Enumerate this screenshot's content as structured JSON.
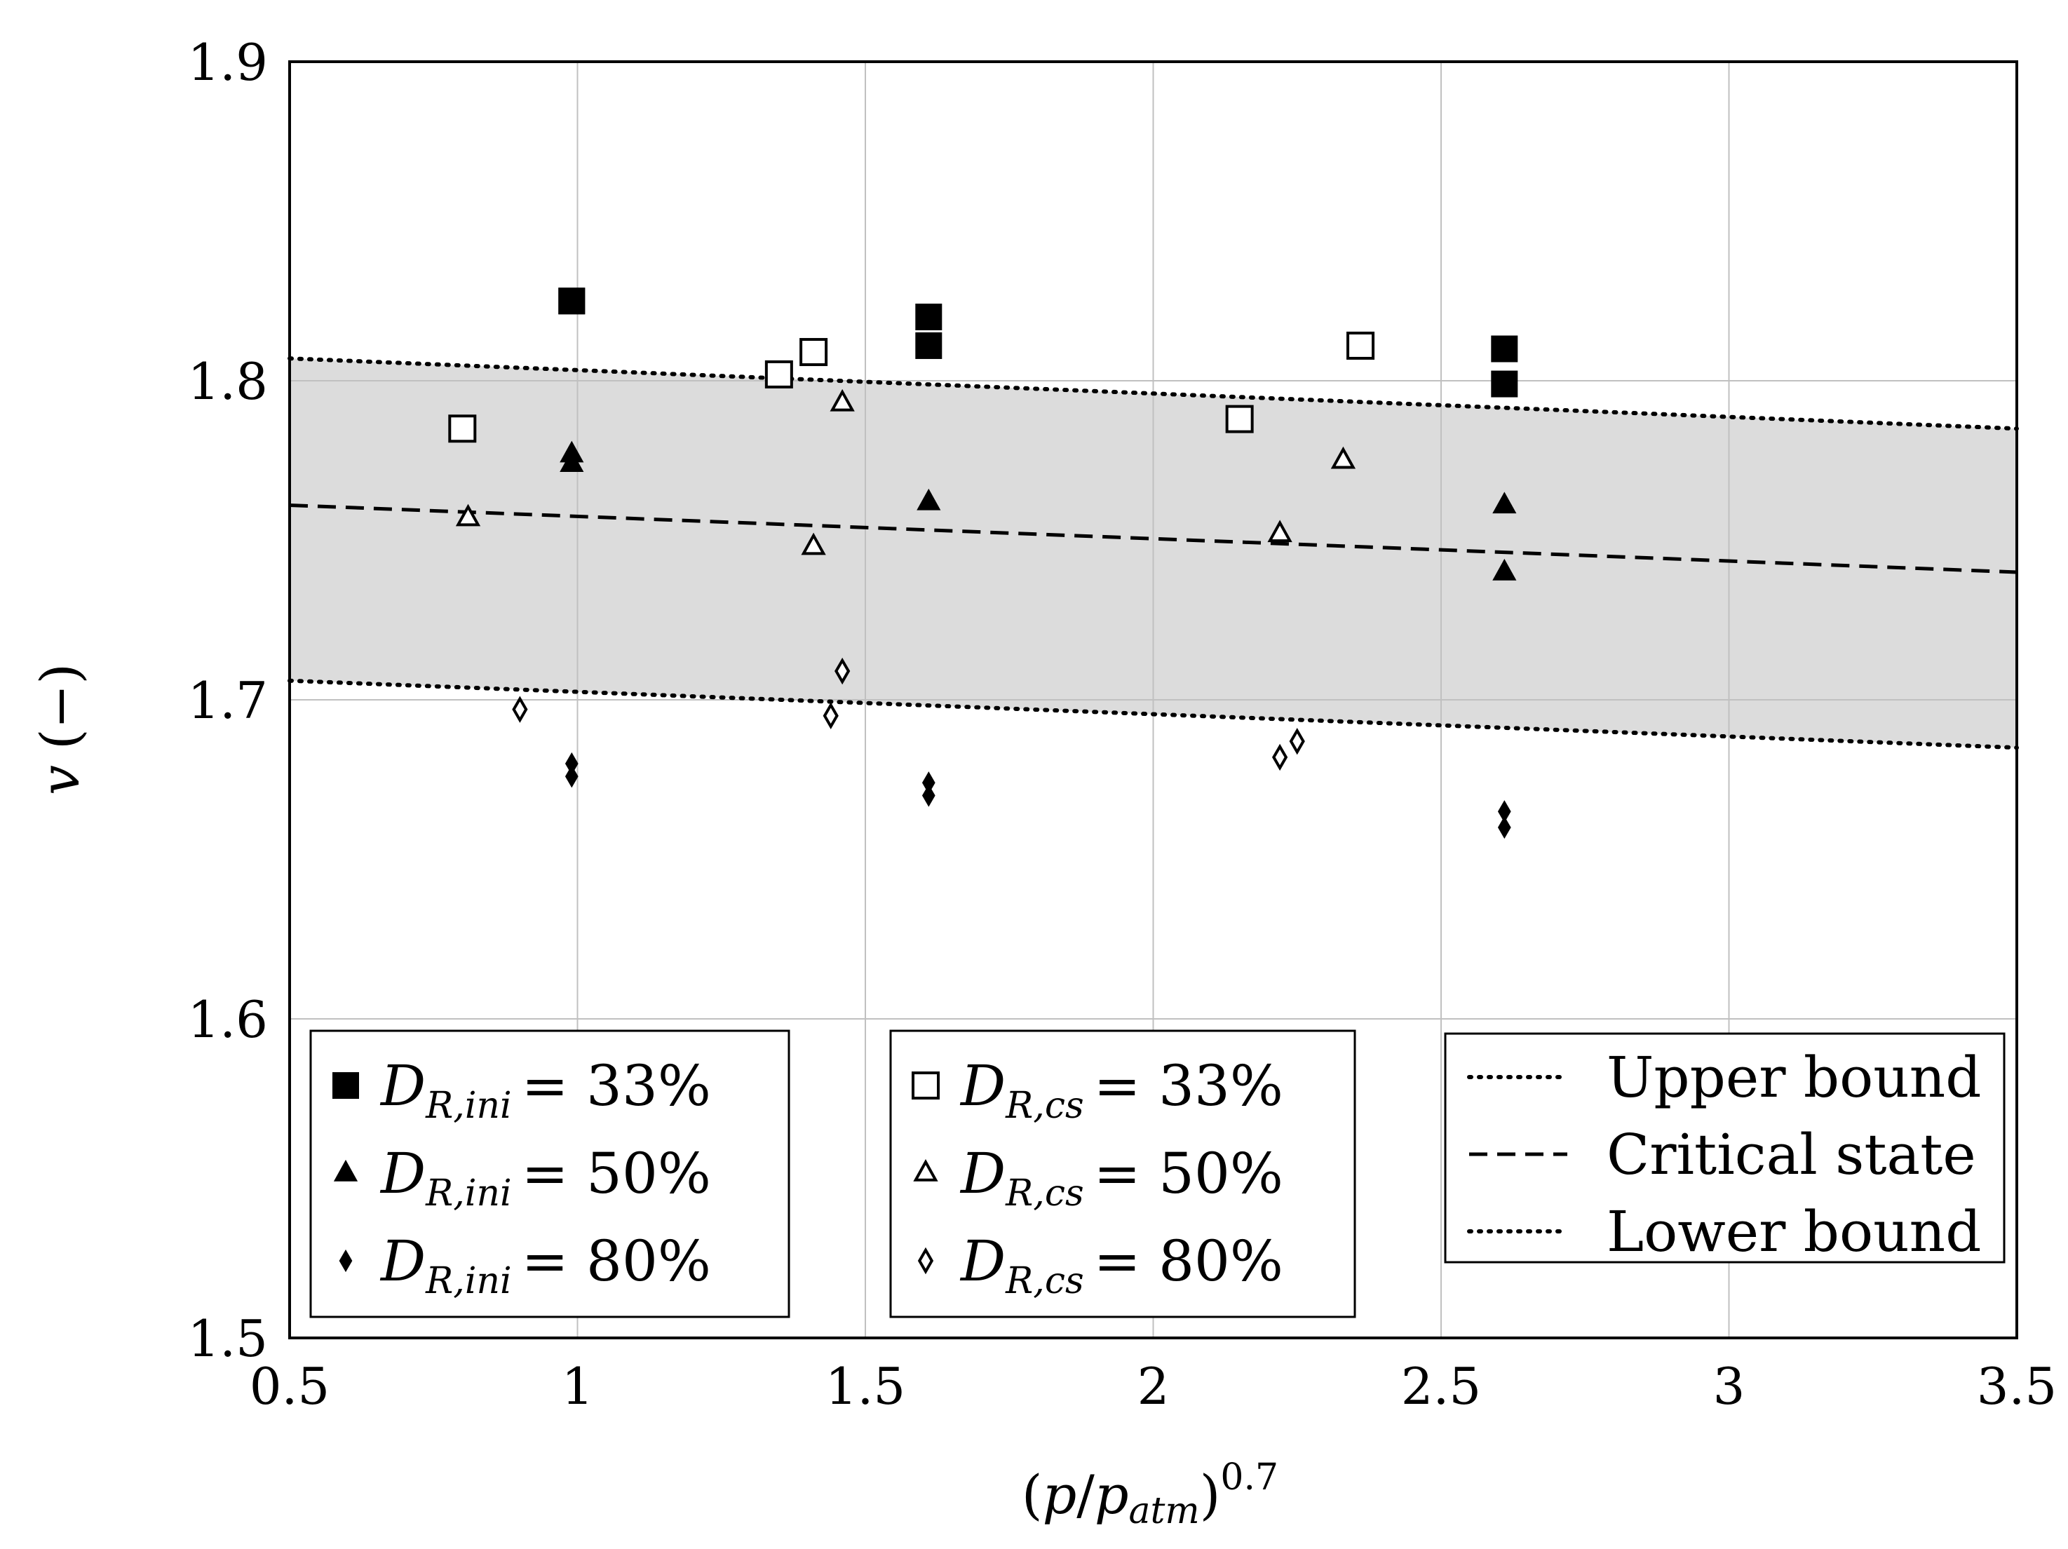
{
  "chart_data": {
    "type": "scatter",
    "title": "",
    "xlabel": "(p/p_atm)^0.7",
    "xlabel_parts": {
      "open": "(",
      "var": "p",
      "slash": "/",
      "var2": "p",
      "sub": "atm",
      "close": ")",
      "sup": "0.7"
    },
    "ylabel": "v (−)",
    "ylabel_parts": {
      "var": "v",
      "unit": "(−)"
    },
    "xlim": [
      0.5,
      3.5
    ],
    "ylim": [
      1.5,
      1.9
    ],
    "xticks": [
      0.5,
      1,
      1.5,
      2,
      2.5,
      3,
      3.5
    ],
    "xtick_labels": [
      "0.5",
      "1",
      "1.5",
      "2",
      "2.5",
      "3",
      "3.5"
    ],
    "yticks": [
      1.5,
      1.6,
      1.7,
      1.8,
      1.9
    ],
    "ytick_labels": [
      "1.5",
      "1.6",
      "1.7",
      "1.8",
      "1.9"
    ],
    "grid": true,
    "band": {
      "x": [
        0.5,
        3.5
      ],
      "upper": [
        1.807,
        1.785
      ],
      "lower": [
        1.706,
        1.685
      ],
      "color": "#dcdcdc"
    },
    "lines": [
      {
        "name": "Upper bound",
        "style": "dotted",
        "x": [
          0.5,
          3.5
        ],
        "y": [
          1.807,
          1.785
        ]
      },
      {
        "name": "Critical state",
        "style": "dashed",
        "x": [
          0.5,
          3.5
        ],
        "y": [
          1.761,
          1.74
        ]
      },
      {
        "name": "Lower bound",
        "style": "dotted",
        "x": [
          0.5,
          3.5
        ],
        "y": [
          1.706,
          1.685
        ]
      }
    ],
    "series": [
      {
        "name": "D_R,ini = 33%",
        "sub": "R,ini",
        "value": "= 33%",
        "marker": "square",
        "filled": true,
        "x": [
          0.99,
          0.99,
          1.61,
          1.61,
          2.61,
          2.61
        ],
        "y": [
          1.825,
          1.825,
          1.82,
          1.811,
          1.81,
          1.799
        ]
      },
      {
        "name": "D_R,ini = 50%",
        "sub": "R,ini",
        "value": "= 50%",
        "marker": "triangle",
        "filled": true,
        "x": [
          0.99,
          0.99,
          1.61,
          2.61,
          2.61
        ],
        "y": [
          1.777,
          1.774,
          1.762,
          1.761,
          1.74
        ]
      },
      {
        "name": "D_R,ini = 80%",
        "sub": "R,ini",
        "value": "= 80%",
        "marker": "diamond",
        "filled": true,
        "x": [
          0.99,
          0.99,
          1.61,
          1.61,
          2.61,
          2.61
        ],
        "y": [
          1.68,
          1.676,
          1.674,
          1.67,
          1.665,
          1.66
        ]
      },
      {
        "name": "D_R,cs = 33%",
        "sub": "R,cs",
        "value": "= 33%",
        "marker": "square",
        "filled": false,
        "x": [
          0.8,
          1.35,
          1.41,
          2.15,
          2.36
        ],
        "y": [
          1.785,
          1.802,
          1.809,
          1.788,
          1.811
        ]
      },
      {
        "name": "D_R,cs = 50%",
        "sub": "R,cs",
        "value": "= 50%",
        "marker": "triangle",
        "filled": false,
        "x": [
          0.81,
          1.41,
          1.46,
          2.22,
          2.33
        ],
        "y": [
          1.757,
          1.748,
          1.793,
          1.752,
          1.775
        ]
      },
      {
        "name": "D_R,cs = 80%",
        "sub": "R,cs",
        "value": "= 80%",
        "marker": "diamond",
        "filled": false,
        "x": [
          0.9,
          1.44,
          1.46,
          2.22,
          2.25
        ],
        "y": [
          1.697,
          1.695,
          1.709,
          1.682,
          1.687
        ]
      }
    ],
    "legends": [
      {
        "location": "bottom-left",
        "entries": [
          0,
          1,
          2
        ]
      },
      {
        "location": "bottom-center",
        "entries": [
          3,
          4,
          5
        ]
      },
      {
        "location": "bottom-right",
        "lines": [
          0,
          1,
          2
        ]
      }
    ],
    "colors": {
      "band": "#dcdcdc",
      "grid": "#c0c0c0",
      "marker": "#000000"
    }
  }
}
